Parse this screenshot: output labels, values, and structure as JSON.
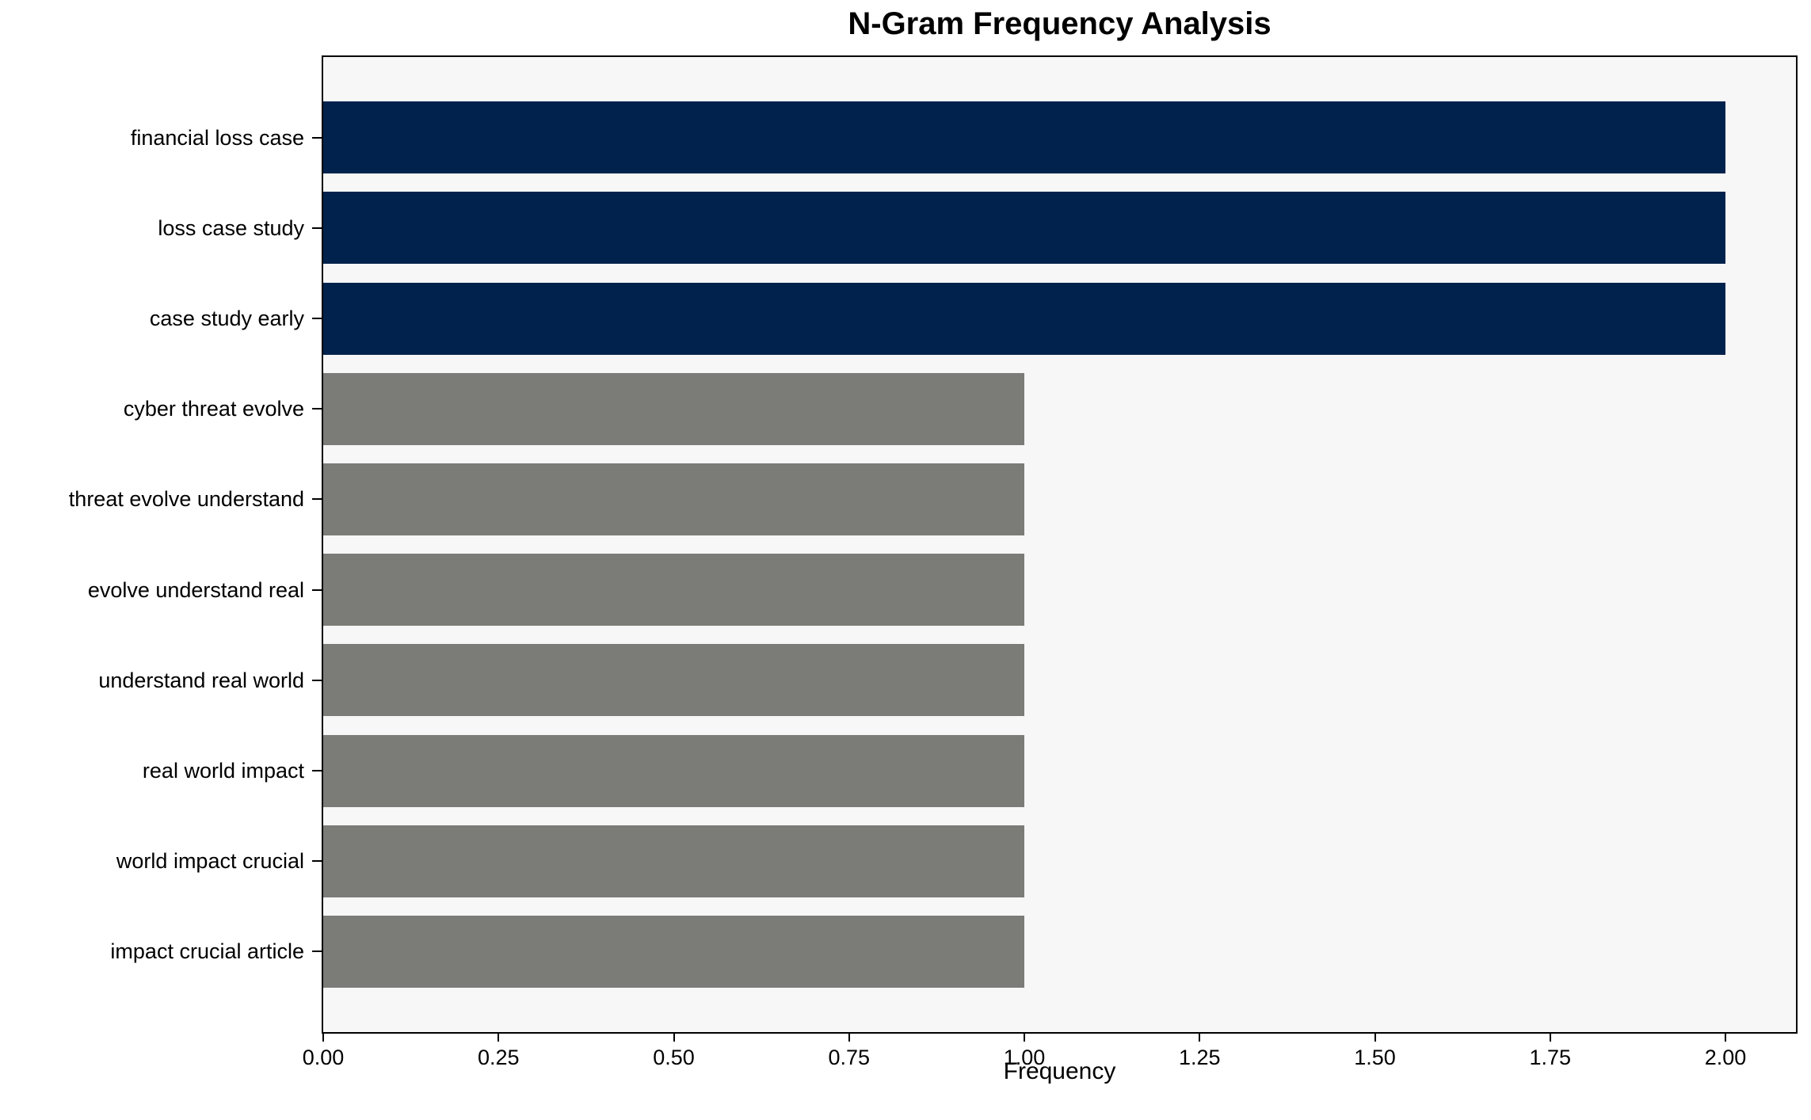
{
  "chart_data": {
    "type": "bar",
    "orientation": "horizontal",
    "title": "N-Gram Frequency Analysis",
    "xlabel": "Frequency",
    "ylabel": "",
    "categories": [
      "financial loss case",
      "loss case study",
      "case study early",
      "cyber threat evolve",
      "threat evolve understand",
      "evolve understand real",
      "understand real world",
      "real world impact",
      "world impact crucial",
      "impact crucial article"
    ],
    "values": [
      2,
      2,
      2,
      1,
      1,
      1,
      1,
      1,
      1,
      1
    ],
    "bar_colors": [
      "#01224d",
      "#01224d",
      "#01224d",
      "#7b7b78",
      "#7b7b78",
      "#7b7b78",
      "#7b7b78",
      "#7b7b78",
      "#7b7b78",
      "#7b7b78"
    ],
    "xlim": [
      0,
      2.1
    ],
    "xtick_values": [
      0,
      0.25,
      0.5,
      0.75,
      1.0,
      1.25,
      1.5,
      1.75,
      2.0
    ],
    "xtick_labels": [
      "0.00",
      "0.25",
      "0.50",
      "0.75",
      "1.00",
      "1.25",
      "1.50",
      "1.75",
      "2.00"
    ],
    "grid": false,
    "legend": "none",
    "colors": {
      "highlight_bar": "#01224d",
      "regular_bar": "#7b7b78",
      "plot_background": "#f7f7f7",
      "figure_background": "#ffffff",
      "axis": "#000000",
      "text": "#000000"
    }
  }
}
